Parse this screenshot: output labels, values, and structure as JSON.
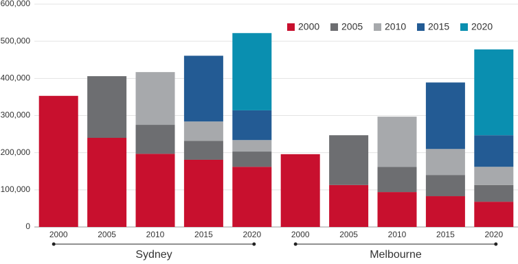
{
  "chart_data": {
    "type": "stacked_bar",
    "categories": [
      "2000",
      "2005",
      "2010",
      "2015",
      "2020",
      "2000",
      "2005",
      "2010",
      "2015",
      "2020"
    ],
    "groups": [
      "Sydney",
      "Melbourne"
    ],
    "series": [
      {
        "name": "2000",
        "color": "#c8102e",
        "values": [
          353000,
          240000,
          197000,
          181000,
          162000,
          196000,
          113000,
          94000,
          83000,
          68000
        ]
      },
      {
        "name": "2005",
        "color": "#6d6e71",
        "values": [
          null,
          166000,
          78000,
          51000,
          41000,
          null,
          134000,
          68000,
          57000,
          45000
        ]
      },
      {
        "name": "2010",
        "color": "#a7a9ac",
        "values": [
          null,
          null,
          142000,
          52000,
          31000,
          null,
          null,
          135000,
          70000,
          49000
        ]
      },
      {
        "name": "2015",
        "color": "#235b94",
        "values": [
          null,
          null,
          null,
          177000,
          80000,
          null,
          null,
          null,
          179000,
          85000
        ]
      },
      {
        "name": "2020",
        "color": "#0a8fb0",
        "values": [
          null,
          null,
          null,
          null,
          208000,
          null,
          null,
          null,
          null,
          231000
        ]
      }
    ],
    "ylim": [
      0,
      600000
    ],
    "yticks": [
      0,
      {
        "value": 100000,
        "label": "100,000"
      },
      {
        "value": 200000,
        "label": "200,000"
      },
      {
        "value": 300000,
        "label": "300,000"
      },
      {
        "value": 400000,
        "label": "400,000"
      },
      {
        "value": 500000,
        "label": "500,000"
      },
      {
        "value": 600000,
        "label": "600,000"
      }
    ],
    "grid": true,
    "legend": "top-right"
  }
}
